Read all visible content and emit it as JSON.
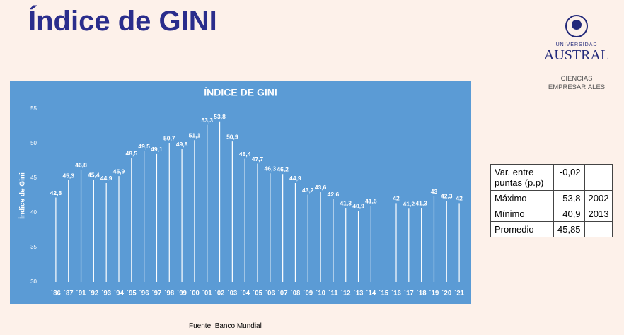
{
  "header": {
    "title": "Índice de GINI"
  },
  "logo": {
    "top": "UNIVERSIDAD",
    "name": "AUSTRAL",
    "faculty": "CIENCIAS EMPRESARIALES"
  },
  "chart_data": {
    "type": "lollipop",
    "title": "ÍNDICE DE GINI",
    "y_label": "Índice de Gini",
    "categories": [
      "´86",
      "´87",
      "´91",
      "´92",
      "´93",
      "´94",
      "´95",
      "´96",
      "´97",
      "´98",
      "´99",
      "´00",
      "´01",
      "´02",
      "´03",
      "´04",
      "´05",
      "´06",
      "´07",
      "´08",
      "´09",
      "´10",
      "´11",
      "´12",
      "´13",
      "´14",
      "´15",
      "´16",
      "´17",
      "´18",
      "´19",
      "´20",
      "´21"
    ],
    "values": [
      42.8,
      45.3,
      46.8,
      45.4,
      44.9,
      45.9,
      48.5,
      49.5,
      49.1,
      50.7,
      49.8,
      51.1,
      53.3,
      53.8,
      50.9,
      48.4,
      47.7,
      46.3,
      46.2,
      44.9,
      43.2,
      43.6,
      42.6,
      41.3,
      40.9,
      41.6,
      null,
      42,
      41.2,
      41.3,
      43,
      42.3,
      42
    ],
    "value_labels": [
      "42,8",
      "45,3",
      "46,8",
      "45,4",
      "44,9",
      "45,9",
      "48,5",
      "49,5",
      "49,1",
      "50,7",
      "49,8",
      "51,1",
      "53,3",
      "53,8",
      "50,9",
      "48,4",
      "47,7",
      "46,3",
      "46,2",
      "44,9",
      "43,2",
      "43,6",
      "42,6",
      "41,3",
      "40,9",
      "41,6",
      null,
      "42",
      "41,2",
      "41,3",
      "43",
      "42,3",
      "42"
    ],
    "color": "#ffffff",
    "background": "#5b9bd5",
    "ylim": [
      30,
      55
    ],
    "yticks": [
      30,
      35,
      40,
      45,
      50,
      55
    ]
  },
  "table": {
    "rows": [
      [
        "Var. entre puntas (p.p)",
        "-0,02"
      ],
      [
        "Máximo",
        "53,8",
        "2002"
      ],
      [
        "Mínimo",
        "40,9",
        "2013"
      ],
      [
        "Promedio",
        "45,85"
      ]
    ]
  },
  "source": "Fuente: Banco Mundial"
}
